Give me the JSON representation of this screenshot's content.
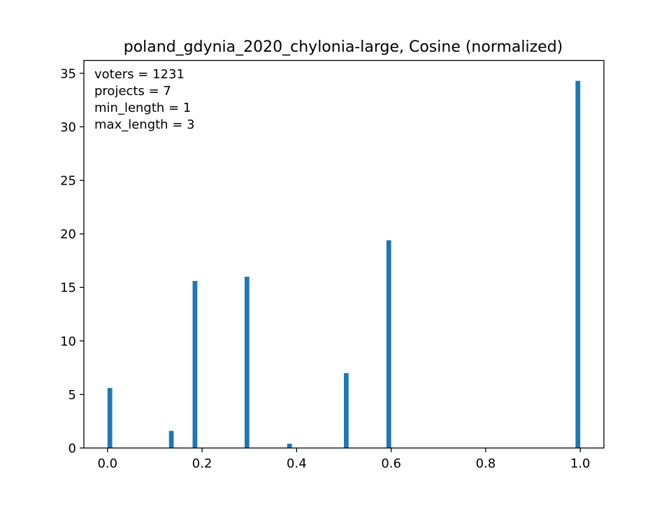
{
  "chart_data": {
    "type": "bar",
    "title": "poland_gdynia_2020_chylonia-large, Cosine (normalized)",
    "xlabel": "",
    "ylabel": "",
    "xlim": [
      -0.05,
      1.05
    ],
    "ylim": [
      0,
      36.2
    ],
    "grid": false,
    "bar_color": "#1f77b4",
    "bar_width": 0.01,
    "annotations": [
      "voters = 1231",
      "projects = 7",
      "min_length = 1",
      "max_length = 3"
    ],
    "x_ticks": [
      {
        "value": 0.0,
        "label": "0.0"
      },
      {
        "value": 0.2,
        "label": "0.2"
      },
      {
        "value": 0.4,
        "label": "0.4"
      },
      {
        "value": 0.6,
        "label": "0.6"
      },
      {
        "value": 0.8,
        "label": "0.8"
      },
      {
        "value": 1.0,
        "label": "1.0"
      }
    ],
    "y_ticks": [
      {
        "value": 0,
        "label": "0"
      },
      {
        "value": 5,
        "label": "5"
      },
      {
        "value": 10,
        "label": "10"
      },
      {
        "value": 15,
        "label": "15"
      },
      {
        "value": 20,
        "label": "20"
      },
      {
        "value": 25,
        "label": "25"
      },
      {
        "value": 30,
        "label": "30"
      },
      {
        "value": 35,
        "label": "35"
      }
    ],
    "bars": [
      {
        "x": 0.005,
        "y": 5.6
      },
      {
        "x": 0.135,
        "y": 1.6
      },
      {
        "x": 0.185,
        "y": 15.6
      },
      {
        "x": 0.295,
        "y": 16.0
      },
      {
        "x": 0.385,
        "y": 0.4
      },
      {
        "x": 0.505,
        "y": 7.0
      },
      {
        "x": 0.595,
        "y": 19.4
      },
      {
        "x": 0.995,
        "y": 34.3
      }
    ]
  }
}
